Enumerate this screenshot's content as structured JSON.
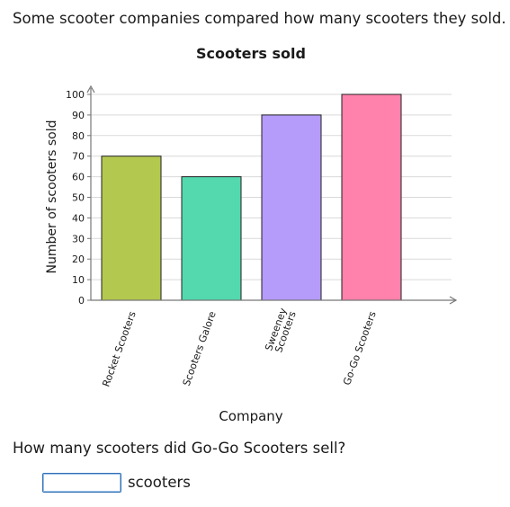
{
  "intro": "Some scooter companies compared how many scooters they sold.",
  "question": "How many scooters did Go-Go Scooters sell?",
  "answer": {
    "value": "",
    "unit": "scooters"
  },
  "colors": {
    "grid": "#d9d9d9",
    "axis": "#777777",
    "bar_stroke": "#222222"
  },
  "chart_data": {
    "type": "bar",
    "title": "Scooters sold",
    "xlabel": "Company",
    "ylabel": "Number of scooters sold",
    "categories": [
      "Rocket Scooters",
      "Scooters Galore",
      "Sweeney Scooters",
      "Go-Go Scooters"
    ],
    "category_label_lines": [
      [
        "Rocket Scooters"
      ],
      [
        "Scooters Galore"
      ],
      [
        "Sweeney",
        "Scooters"
      ],
      [
        "Go-Go Scooters"
      ]
    ],
    "values": [
      70,
      60,
      90,
      100
    ],
    "bar_colors": [
      "#b3c84f",
      "#54d8ae",
      "#b59bfa",
      "#fe82ac"
    ],
    "ylim": [
      0,
      100
    ],
    "yticks": [
      0,
      10,
      20,
      30,
      40,
      50,
      60,
      70,
      80,
      90,
      100
    ],
    "grid": true,
    "legend": false
  }
}
